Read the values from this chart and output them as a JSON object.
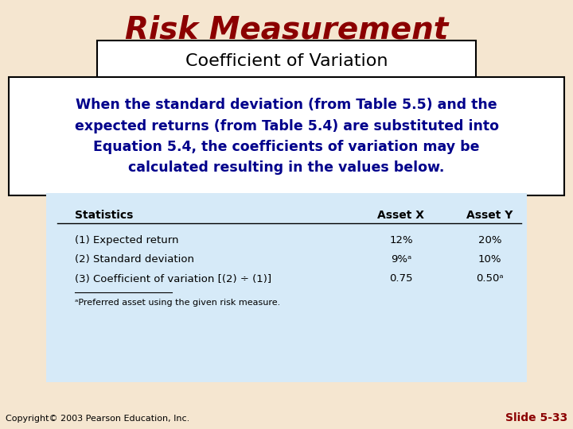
{
  "title": "Risk Measurement",
  "subtitle": "Coefficient of Variation",
  "body_text": "When the standard deviation (from Table 5.5) and the\nexpected returns (from Table 5.4) are substituted into\nEquation 5.4, the coefficients of variation may be\ncalculated resulting in the values below.",
  "bg_color": "#f5e6d0",
  "title_color": "#8b0000",
  "subtitle_color": "#000000",
  "body_text_color": "#00008b",
  "table_bg_color": "#d6eaf8",
  "table_header": [
    "Statistics",
    "Asset X",
    "Asset Y"
  ],
  "table_rows": [
    [
      "(1) Expected return",
      "12%",
      "20%"
    ],
    [
      "(2) Standard deviation",
      "9%ᵃ",
      "10%"
    ],
    [
      "(3) Coefficient of variation [(2) ÷ (1)]",
      "0.75",
      "0.50ᵃ"
    ]
  ],
  "footnote": "ᵃPreferred asset using the given risk measure.",
  "copyright": "Copyright© 2003 Pearson Education, Inc.",
  "slide_number": "Slide 5-33",
  "slide_color": "#8b0000"
}
